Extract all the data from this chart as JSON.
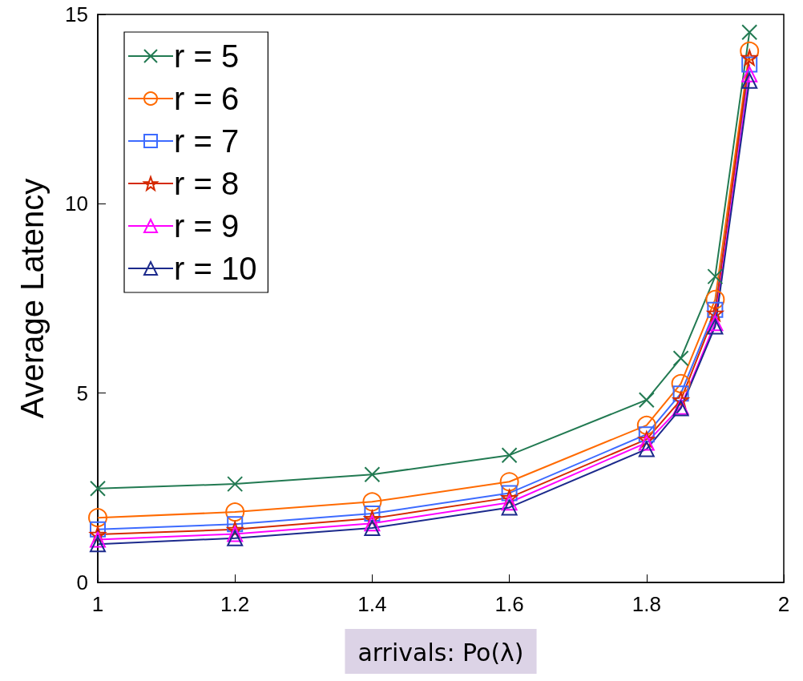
{
  "chart_data": {
    "type": "line",
    "xlabel": "arrivals: Po(λ)",
    "ylabel": "Average Latency",
    "x": [
      1,
      1.2,
      1.4,
      1.6,
      1.8,
      1.85,
      1.9,
      1.95
    ],
    "xlim": [
      1,
      2
    ],
    "xticks": [
      1,
      1.2,
      1.4,
      1.6,
      1.8,
      2
    ],
    "ylim": [
      0,
      15
    ],
    "yticks": [
      0,
      5,
      10,
      15
    ],
    "grid": false,
    "legend": "top left",
    "line_style": "solid",
    "series": [
      {
        "name": "r = 5",
        "color": "#227a52",
        "marker": "cross",
        "values": [
          2.48,
          2.6,
          2.85,
          3.36,
          4.82,
          5.92,
          8.08,
          14.53
        ]
      },
      {
        "name": "r = 6",
        "color": "#ff6a00",
        "marker": "circle",
        "values": [
          1.71,
          1.86,
          2.13,
          2.66,
          4.15,
          5.25,
          7.47,
          14.03
        ]
      },
      {
        "name": "r = 7",
        "color": "#3d6bff",
        "marker": "square",
        "values": [
          1.4,
          1.54,
          1.82,
          2.36,
          3.91,
          4.99,
          7.2,
          13.68
        ]
      },
      {
        "name": "r = 8",
        "color": "#d42a00",
        "marker": "star",
        "values": [
          1.27,
          1.4,
          1.69,
          2.24,
          3.78,
          4.82,
          7.11,
          13.86
        ]
      },
      {
        "name": "r = 9",
        "color": "#ff00ff",
        "marker": "triangle",
        "values": [
          1.13,
          1.28,
          1.56,
          2.11,
          3.69,
          4.64,
          6.85,
          13.42
        ]
      },
      {
        "name": "r = 10",
        "color": "#1c2a8c",
        "marker": "triangle",
        "values": [
          1.01,
          1.17,
          1.44,
          1.98,
          3.52,
          4.6,
          6.76,
          13.25
        ]
      }
    ]
  }
}
